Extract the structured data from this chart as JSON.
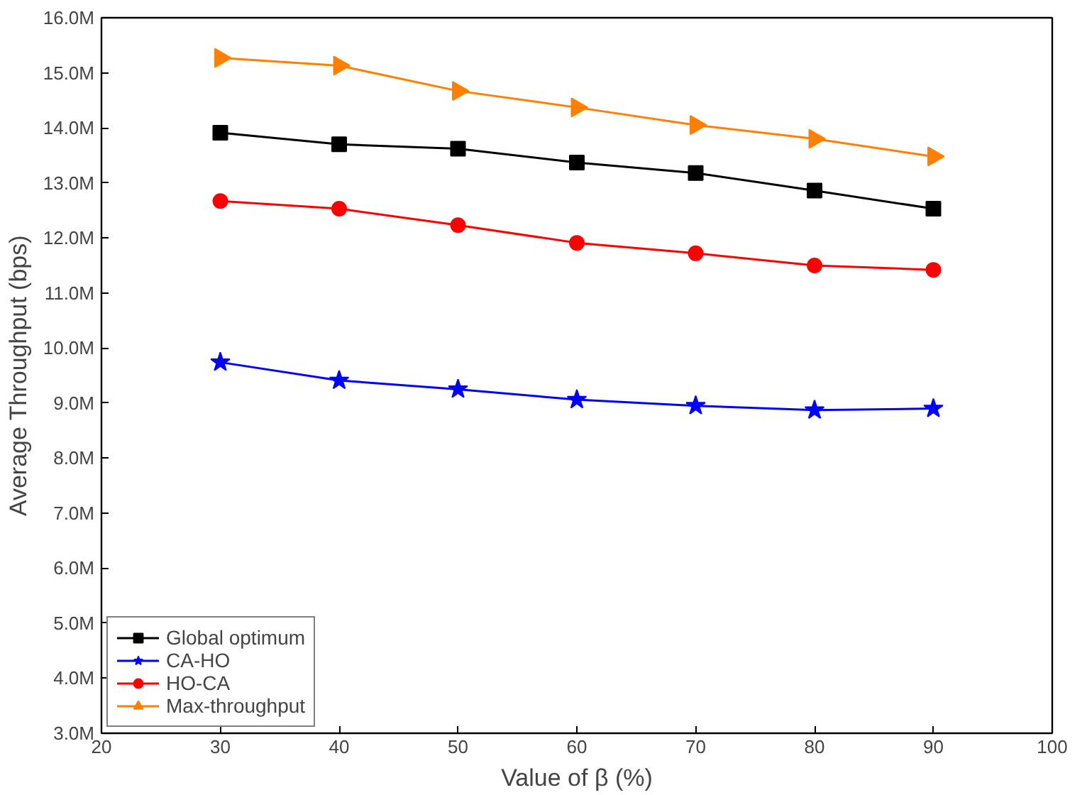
{
  "chart_data": {
    "type": "line",
    "xlabel": "Value of β (%)",
    "ylabel": "Average Throughput (bps)",
    "x": [
      30,
      40,
      50,
      60,
      70,
      80,
      90
    ],
    "series": [
      {
        "name": "Global optimum",
        "color": "#000000",
        "marker": "square",
        "values": [
          13.91,
          13.7,
          13.62,
          13.37,
          13.18,
          12.86,
          12.53
        ]
      },
      {
        "name": "CA-HO",
        "color": "#0000ff",
        "marker": "star",
        "values": [
          9.74,
          9.41,
          9.25,
          9.06,
          8.95,
          8.87,
          8.9
        ]
      },
      {
        "name": "HO-CA",
        "color": "#ff0000",
        "marker": "circle",
        "values": [
          12.67,
          12.53,
          12.23,
          11.91,
          11.72,
          11.5,
          11.42
        ]
      },
      {
        "name": "Max-throughput",
        "color": "#ff8000",
        "marker": "triangle",
        "values": [
          15.27,
          15.13,
          14.67,
          14.37,
          14.05,
          13.8,
          13.48
        ]
      }
    ],
    "xlim": [
      20,
      100
    ],
    "xticks": [
      20,
      30,
      40,
      50,
      60,
      70,
      80,
      90,
      100
    ],
    "ylim": [
      3,
      16
    ],
    "yticks": [
      {
        "value": 3,
        "label": "3.0M"
      },
      {
        "value": 4,
        "label": "4.0M"
      },
      {
        "value": 5,
        "label": "5.0M"
      },
      {
        "value": 6,
        "label": "6.0M"
      },
      {
        "value": 7,
        "label": "7.0M"
      },
      {
        "value": 8,
        "label": "8.0M"
      },
      {
        "value": 9,
        "label": "9.0M"
      },
      {
        "value": 10,
        "label": "10.0M"
      },
      {
        "value": 11,
        "label": "11.0M"
      },
      {
        "value": 12,
        "label": "12.0M"
      },
      {
        "value": 13,
        "label": "13.0M"
      },
      {
        "value": 14,
        "label": "14.0M"
      },
      {
        "value": 15,
        "label": "15.0M"
      },
      {
        "value": 16,
        "label": "16.0M"
      }
    ],
    "grid": false,
    "legend": "bottom left",
    "line_style": "solid"
  }
}
